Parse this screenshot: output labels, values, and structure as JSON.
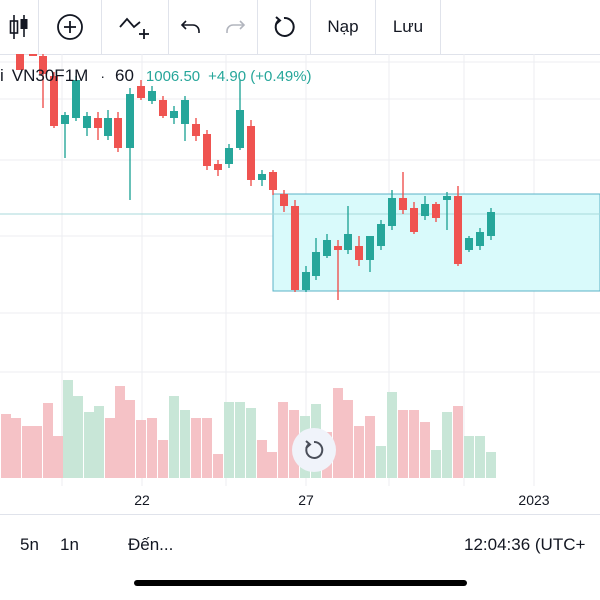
{
  "toolbar": {
    "items": [
      {
        "icon": "candlestick-icon"
      },
      {
        "icon": "add-indicator-icon"
      },
      {
        "icon": "drawing-tool-icon"
      },
      {
        "icon": "undo-icon"
      },
      {
        "icon": "redo-icon"
      },
      {
        "icon": "reload-icon"
      }
    ],
    "load_label": "Nạp",
    "save_label": "Lưu"
  },
  "legend": {
    "prefix": "i",
    "symbol": "VN30F1M",
    "separator": "·",
    "interval": "60",
    "last": "1006.50",
    "change": "+4.90 (+0.49%)",
    "change_color": "#26a69a"
  },
  "chart_data": {
    "type": "candlestick",
    "up_color": "#26a69a",
    "down_color": "#ef5350",
    "volume_up_color": "#c8e6d7",
    "volume_down_color": "#f5c2c6",
    "range_box_fill": "#d9fafb",
    "range_box_border": "#5bb3c7",
    "x_tick_labels": [
      "22",
      "27",
      "2023"
    ]
  },
  "bottom": {
    "range_5n": "5n",
    "range_1n": "1n",
    "goto": "Đến...",
    "clock": "12:04:36 (UTC+"
  }
}
